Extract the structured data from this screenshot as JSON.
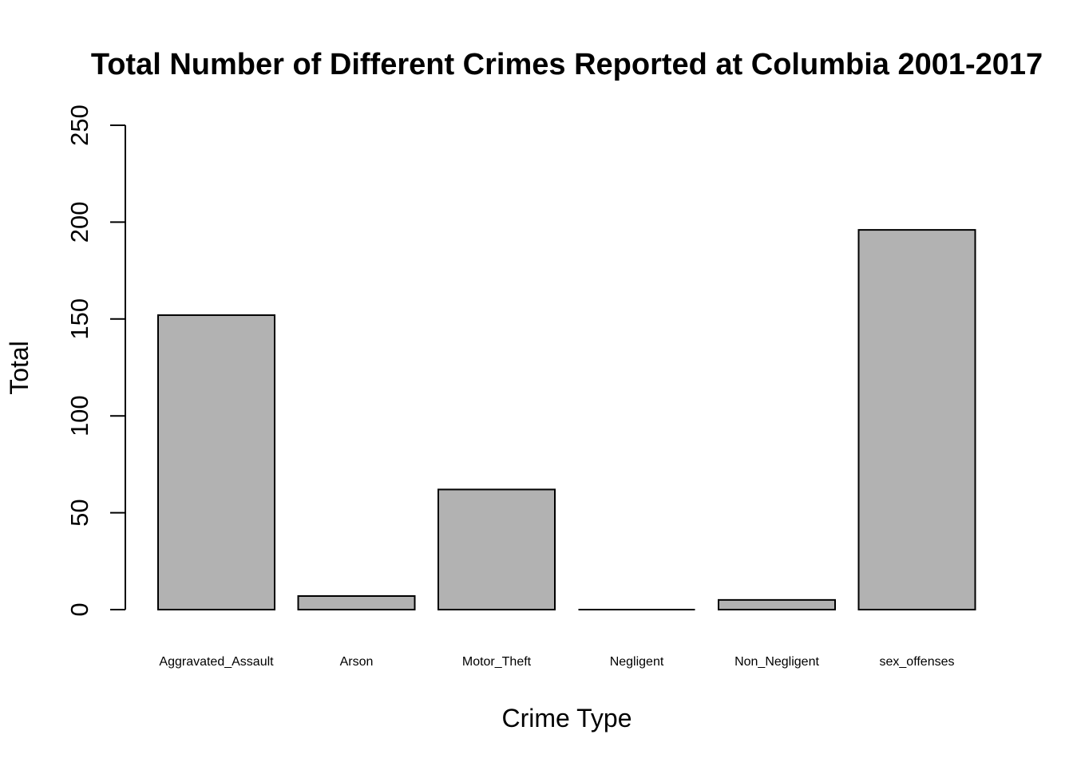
{
  "chart_data": {
    "type": "bar",
    "title": "Total Number of Different Crimes Reported at Columbia 2001-2017",
    "xlabel": "Crime Type",
    "ylabel": "Total",
    "categories": [
      "Aggravated_Assault",
      "Arson",
      "Motor_Theft",
      "Negligent",
      "Non_Negligent",
      "sex_offenses"
    ],
    "values": [
      152,
      7,
      62,
      0,
      5,
      196
    ],
    "ylim": [
      0,
      250
    ],
    "yticks": [
      0,
      50,
      100,
      150,
      200,
      250
    ],
    "grid": false,
    "legend": "none",
    "bar_color": "#b2b2b2"
  }
}
